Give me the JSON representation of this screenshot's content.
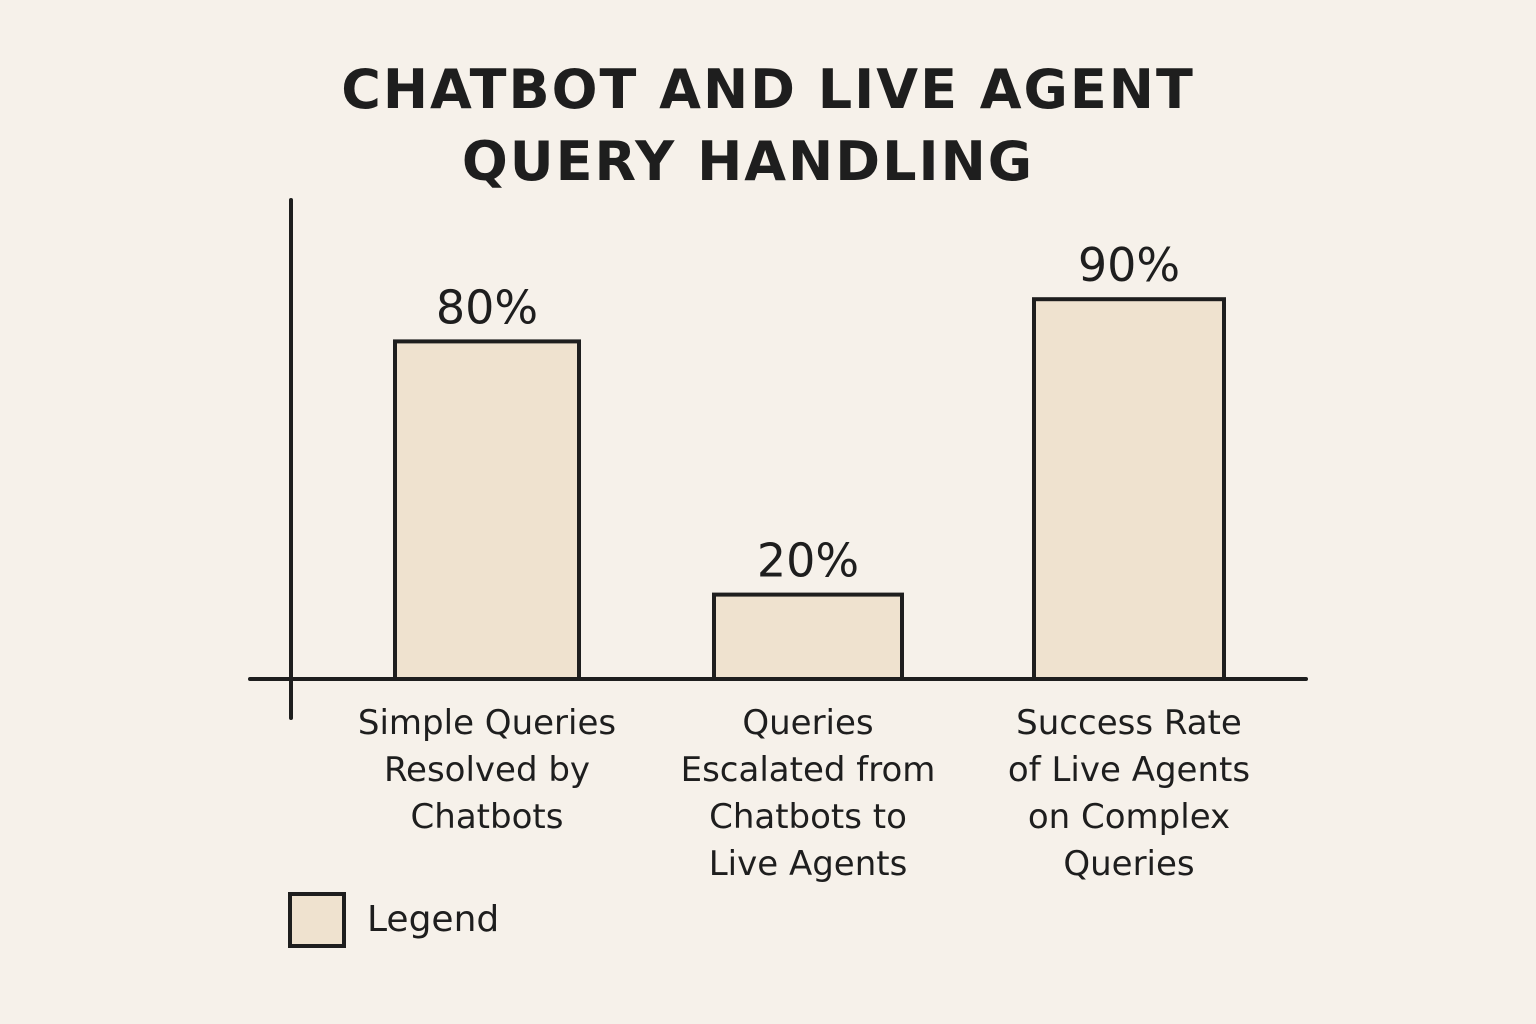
{
  "chart_data": {
    "type": "bar",
    "title_lines": [
      "CHATBOT AND LIVE AGENT",
      "QUERY HANDLING"
    ],
    "categories": [
      "Simple Queries Resolved by Chatbots",
      "Queries Escalated from Chatbots to Live Agents",
      "Success Rate of Live Agents on Complex Queries"
    ],
    "category_label_lines": [
      [
        "Simple Queries",
        "Resolved by",
        "Chatbots"
      ],
      [
        "Queries",
        "Escalated from",
        "Chatbots to",
        "Live Agents"
      ],
      [
        "Success Rate",
        "of Live Agents",
        "on Complex",
        "Queries"
      ]
    ],
    "values": [
      80,
      20,
      90
    ],
    "value_labels": [
      "80%",
      "20%",
      "90%"
    ],
    "ylim": [
      0,
      100
    ],
    "grid": false,
    "legend": {
      "placement": "bottom-left",
      "label": "Legend"
    },
    "colors": {
      "bar_fill": "#efe2cf",
      "stroke": "#1e1e1e",
      "background": "#f6f1ea"
    }
  }
}
